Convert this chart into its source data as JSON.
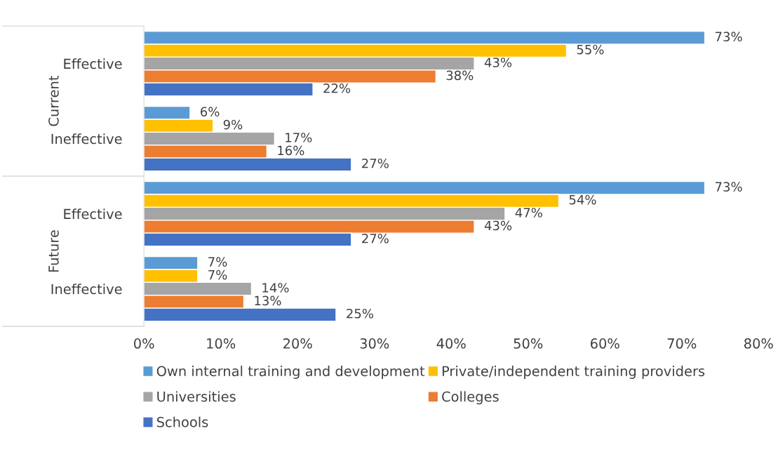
{
  "chart_data": {
    "type": "bar",
    "orientation": "horizontal",
    "categories": [
      "Effective",
      "Ineffective",
      "Effective",
      "Ineffective"
    ],
    "series": [
      {
        "name": "Own internal training and development",
        "color": "#5b9bd5",
        "values": [
          73,
          6,
          73,
          7
        ],
        "value_labels": [
          "73%",
          "6%",
          "73%",
          "7%"
        ]
      },
      {
        "name": "Private/independent training providers",
        "color": "#ffc000",
        "values": [
          55,
          9,
          54,
          7
        ],
        "value_labels": [
          "55%",
          "9%",
          "54%",
          "7%"
        ]
      },
      {
        "name": "Universities",
        "color": "#a5a5a5",
        "values": [
          43,
          17,
          47,
          14
        ],
        "value_labels": [
          "43%",
          "17%",
          "47%",
          "14%"
        ]
      },
      {
        "name": "Colleges",
        "color": "#ed7d31",
        "values": [
          38,
          16,
          43,
          13
        ],
        "value_labels": [
          "38%",
          "16%",
          "43%",
          "13%"
        ]
      },
      {
        "name": "Schools",
        "color": "#4472c4",
        "values": [
          22,
          27,
          27,
          25
        ],
        "value_labels": [
          "22%",
          "27%",
          "27%",
          "25%"
        ]
      }
    ],
    "annotations": [
      "Current",
      "Future"
    ],
    "xlim": [
      0,
      80
    ],
    "xticks": [
      {
        "value": 0,
        "label": "0%"
      },
      {
        "value": 10,
        "label": "10%"
      },
      {
        "value": 20,
        "label": "20%"
      },
      {
        "value": 30,
        "label": "30%"
      },
      {
        "value": 40,
        "label": "40%"
      },
      {
        "value": 50,
        "label": "50%"
      },
      {
        "value": 60,
        "label": "60%"
      },
      {
        "value": 70,
        "label": "70%"
      },
      {
        "value": 80,
        "label": "80%"
      }
    ],
    "grid": false,
    "legend": "bottom"
  }
}
